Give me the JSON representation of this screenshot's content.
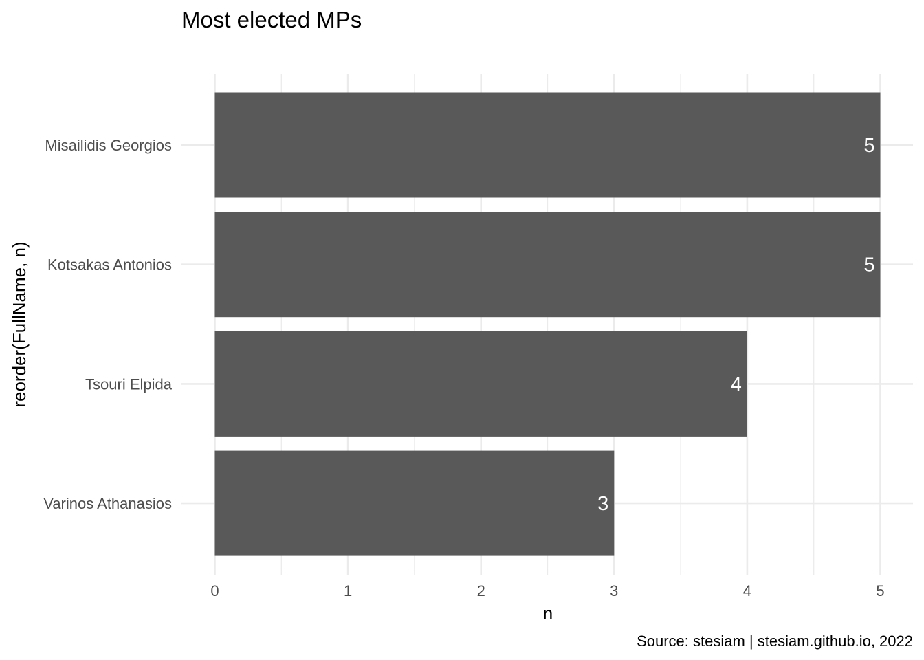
{
  "chart_data": {
    "type": "bar",
    "orientation": "horizontal",
    "title": "Most elected MPs",
    "xlabel": "n",
    "ylabel": "reorder(FullName, n)",
    "caption": "Source: stesiam | stesiam.github.io, 2022",
    "categories": [
      "Misailidis Georgios",
      "Kotsakas Antonios",
      "Tsouri Elpida",
      "Varinos Athanasios"
    ],
    "values": [
      5,
      5,
      4,
      3
    ],
    "xlim": [
      0,
      5
    ],
    "xticks": [
      0,
      1,
      2,
      3,
      4,
      5
    ],
    "grid": true,
    "bar_color": "#595959",
    "label_color": "#ffffff"
  }
}
